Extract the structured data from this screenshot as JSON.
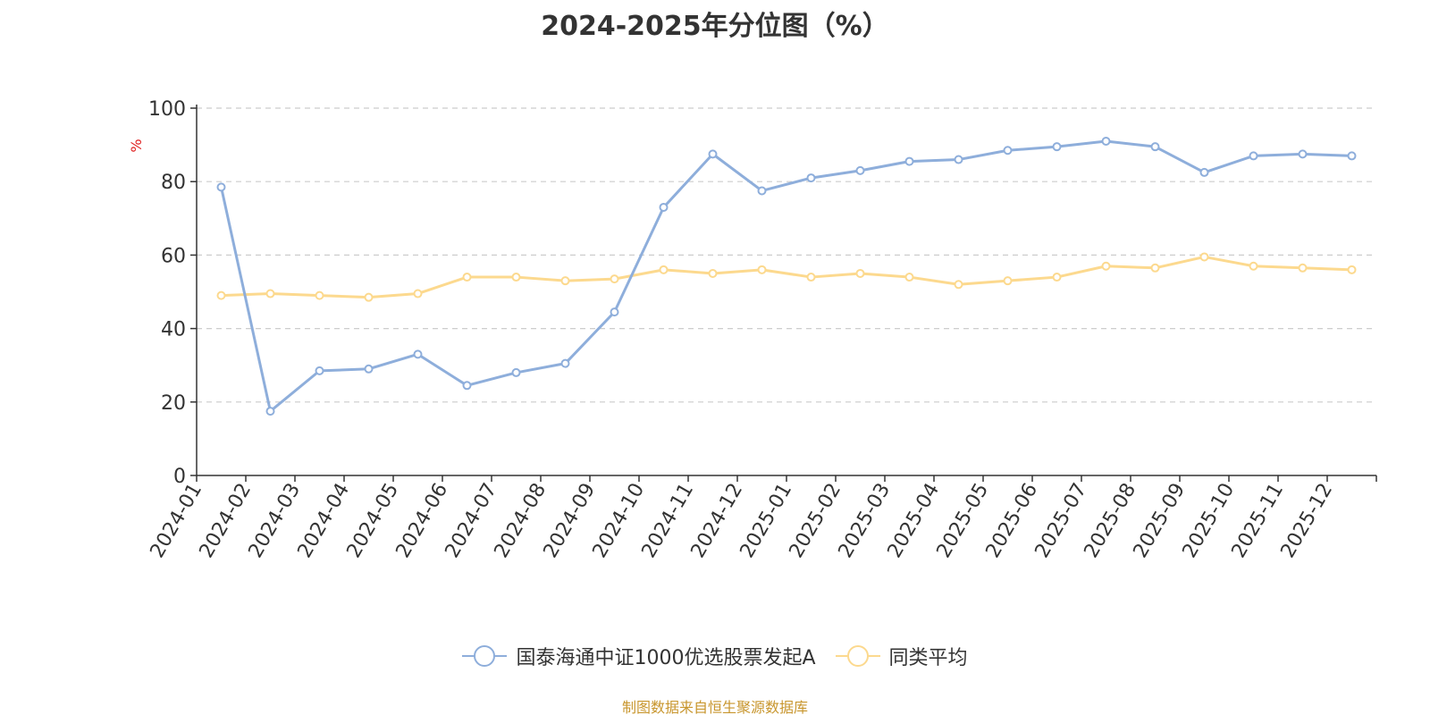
{
  "chart_data": {
    "type": "line",
    "title": "2024-2025年分位图（%）",
    "ylabel": "%",
    "xlabel": "",
    "ylim": [
      0,
      100
    ],
    "yticks": [
      0,
      20,
      40,
      60,
      80,
      100
    ],
    "grid": true,
    "legend_position": "bottom",
    "categories": [
      "2024-01",
      "2024-02",
      "2024-03",
      "2024-04",
      "2024-05",
      "2024-06",
      "2024-07",
      "2024-08",
      "2024-09",
      "2024-10",
      "2024-11",
      "2024-12",
      "2025-01",
      "2025-02",
      "2025-03",
      "2025-04",
      "2025-05",
      "2025-06",
      "2025-07",
      "2025-08",
      "2025-09",
      "2025-10",
      "2025-11",
      "2025-12"
    ],
    "series": [
      {
        "name": "国泰海通中证1000优选股票发起A",
        "color": "#8eaedb",
        "values": [
          78.5,
          17.5,
          28.5,
          29,
          33,
          24.5,
          28,
          30.5,
          44.5,
          73,
          87.5,
          77.5,
          81,
          83,
          85.5,
          86,
          88.5,
          89.5,
          91,
          89.5,
          82.5,
          87,
          87.5,
          87
        ]
      },
      {
        "name": "同类平均",
        "color": "#fcd98e",
        "values": [
          49,
          49.5,
          49,
          48.5,
          49.5,
          54,
          54,
          53,
          53.5,
          56,
          55,
          56,
          54,
          55,
          54,
          52,
          53,
          54,
          57,
          56.5,
          59.5,
          57,
          56.5,
          56
        ]
      }
    ]
  },
  "source_text": "制图数据来自恒生聚源数据库",
  "colors": {
    "axis": "#333333",
    "grid": "#cccccc",
    "ylabel": "#e02020",
    "source": "#c8962e"
  }
}
